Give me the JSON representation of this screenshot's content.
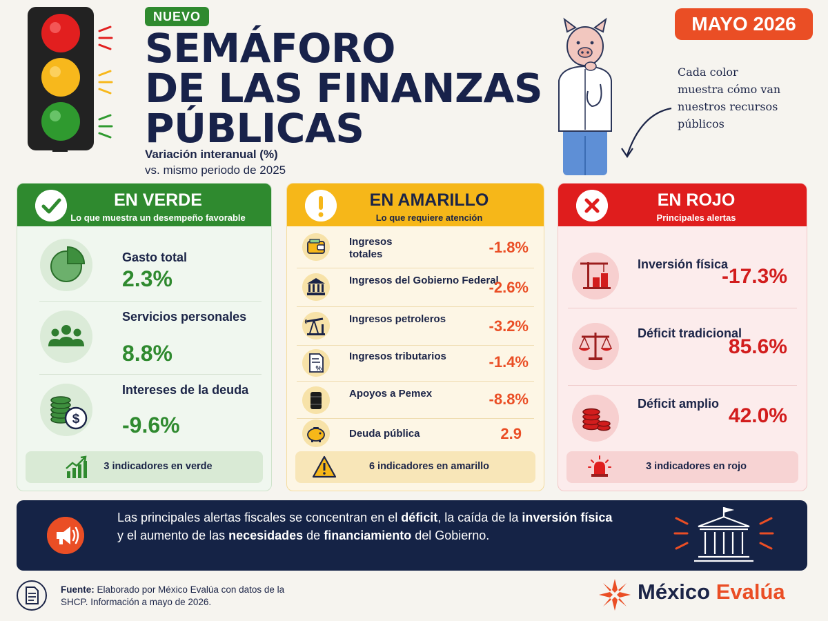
{
  "header": {
    "badge": "NUEVO",
    "title_lines": [
      "SEMÁFORO",
      "DE LAS FINANZAS",
      "PÚBLICAS"
    ],
    "subtitle_line1": "Variación interanual (%)",
    "subtitle_line2": "vs. mismo periodo de 2025",
    "date": "MAYO 2026",
    "note": "Cada color muestra cómo van nuestros recursos públicos"
  },
  "green": {
    "title": "EN VERDE",
    "subtitle": "Lo que muestra un desempeño favorable",
    "items": [
      {
        "label": "Gasto total",
        "value": "2.3%",
        "icon": "pie-chart-icon"
      },
      {
        "label": "Servicios personales",
        "value": "8.8%",
        "icon": "people-icon"
      },
      {
        "label": "Intereses de la deuda",
        "value": "-9.6%",
        "icon": "coins-dollar-icon"
      }
    ],
    "footer": "3 indicadores en verde"
  },
  "yellow": {
    "title": "EN AMARILLO",
    "subtitle": "Lo que requiere atención",
    "items": [
      {
        "label": "Ingresos totales",
        "value": "-1.8%",
        "icon": "wallet-icon"
      },
      {
        "label": "Ingresos del Gobierno Federal",
        "value": "-2.6%",
        "icon": "government-building-icon"
      },
      {
        "label": "Ingresos petroleros",
        "value": "-3.2%",
        "icon": "oil-pump-icon"
      },
      {
        "label": "Ingresos tributarios",
        "value": "-1.4%",
        "icon": "tax-document-icon"
      },
      {
        "label": "Apoyos a Pemex",
        "value": "-8.8%",
        "icon": "oil-barrel-icon"
      },
      {
        "label": "Deuda pública",
        "value": "2.9",
        "icon": "piggy-bank-icon"
      }
    ],
    "footer": "6 indicadores en amarillo"
  },
  "red": {
    "title": "EN ROJO",
    "subtitle": "Principales alertas",
    "items": [
      {
        "label": "Inversión física",
        "value": "-17.3%",
        "icon": "construction-crane-icon"
      },
      {
        "label": "Déficit tradicional",
        "value": "85.6%",
        "icon": "balance-scale-icon"
      },
      {
        "label": "Déficit amplio",
        "value": "42.0%",
        "icon": "coin-stack-icon"
      }
    ],
    "footer": "3 indicadores en rojo"
  },
  "banner": {
    "p1": "Las principales alertas fiscales se concentran en el ",
    "b1": "déficit",
    "p2": ", la caída de la ",
    "b2": "inversión física",
    "p3": " y el aumento de las ",
    "b3": "necesidades",
    "p4": " de ",
    "b4": "financiamiento",
    "p5": " del Gobierno."
  },
  "footer": {
    "source_label": "Fuente:",
    "source_text": " Elaborado por México Evalúa con datos de la SHCP. Información a mayo de 2026.",
    "logo_part1": "México",
    "logo_part2": " Evalúa"
  },
  "colors": {
    "green": "#2f8a2f",
    "yellow": "#f6b719",
    "red": "#df1d1d",
    "orange": "#ea4e25",
    "navy": "#152346"
  }
}
